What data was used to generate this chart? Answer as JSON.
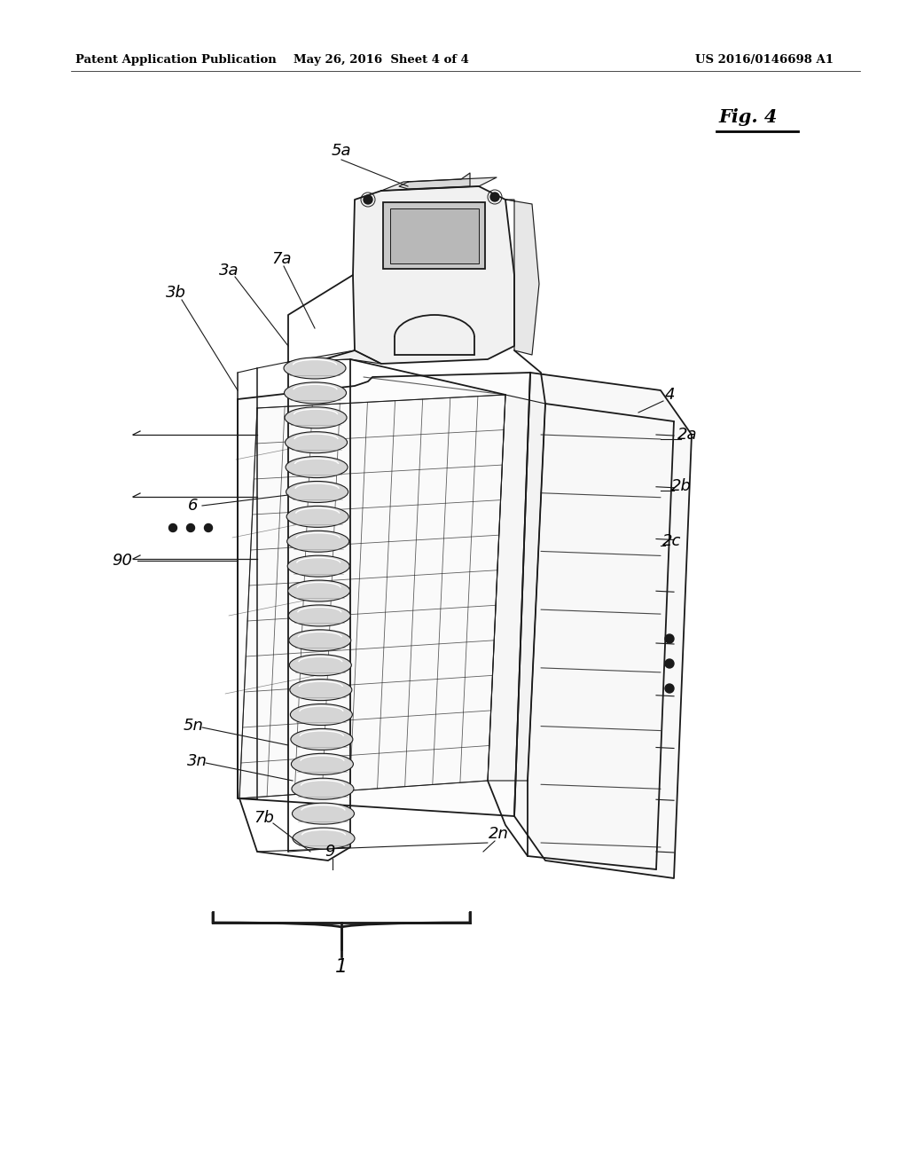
{
  "bg_color": "#ffffff",
  "header_left": "Patent Application Publication",
  "header_mid": "May 26, 2016  Sheet 4 of 4",
  "header_right": "US 2016/0146698 A1",
  "fig_label": "Fig. 4",
  "line_color": "#1a1a1a",
  "label_fontsize": 13,
  "header_fontsize": 9.5
}
